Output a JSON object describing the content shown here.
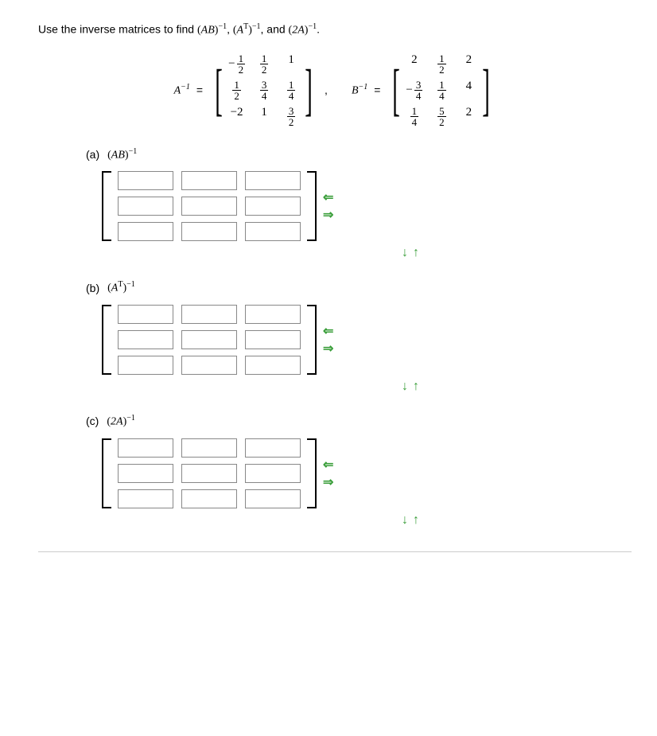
{
  "problem": {
    "intro": "Use the inverse matrices to find ",
    "exp1_base": "AB",
    "exp2_base": "A",
    "exp2_sup": "T",
    "exp3_base": "2A",
    "exp_power": "−1",
    "and_text": ", and "
  },
  "matrixA": {
    "label_base": "A",
    "label_power": "−1",
    "equals": "=",
    "cells": [
      {
        "neg": true,
        "num": "1",
        "den": "2"
      },
      {
        "num": "1",
        "den": "2"
      },
      {
        "plain": "1"
      },
      {
        "num": "1",
        "den": "2"
      },
      {
        "num": "3",
        "den": "4"
      },
      {
        "num": "1",
        "den": "4"
      },
      {
        "plain": "−2"
      },
      {
        "plain": "1"
      },
      {
        "num": "3",
        "den": "2"
      }
    ]
  },
  "matrixB": {
    "label_base": "B",
    "label_power": "−1",
    "equals": "=",
    "cells": [
      {
        "plain": "2"
      },
      {
        "num": "1",
        "den": "2"
      },
      {
        "plain": "2"
      },
      {
        "neg": true,
        "num": "3",
        "den": "4"
      },
      {
        "num": "1",
        "den": "4"
      },
      {
        "plain": "4"
      },
      {
        "num": "1",
        "den": "4"
      },
      {
        "num": "5",
        "den": "2"
      },
      {
        "plain": "2"
      }
    ]
  },
  "parts": {
    "a": {
      "label": "(a)",
      "base": "AB",
      "sup": "",
      "power": "−1"
    },
    "b": {
      "label": "(b)",
      "base": "A",
      "sup": "T",
      "power": "−1"
    },
    "c": {
      "label": "(c)",
      "base": "2A",
      "sup": "",
      "power": "−1"
    }
  },
  "arrows": {
    "left": "⇐",
    "right": "⇒",
    "down": "↓",
    "up": "↑"
  },
  "separator": ","
}
